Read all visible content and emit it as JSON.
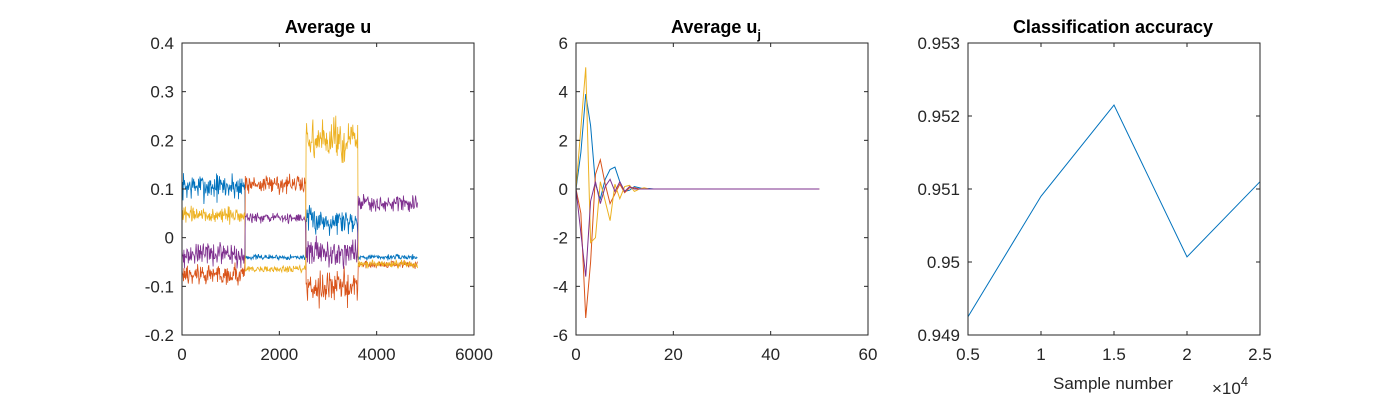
{
  "colors": [
    "#0072BD",
    "#D95319",
    "#EDB120",
    "#7E2F8E"
  ],
  "chart_data": [
    {
      "type": "line",
      "title": "Average u",
      "xlabel": "",
      "ylabel": "",
      "xlim": [
        0,
        6000
      ],
      "ylim": [
        -0.2,
        0.4
      ],
      "xticks": [
        "0",
        "2000",
        "4000",
        "6000"
      ],
      "yticks": [
        "-0.2",
        "-0.1",
        "0",
        "0.1",
        "0.2",
        "0.3",
        "0.4"
      ],
      "grid": false,
      "noise_seed": 7,
      "series": [
        {
          "color_index": 0,
          "x_step": 10,
          "segments": [
            {
              "x_range": [
                0,
                1300
              ],
              "mean": 0.105,
              "amplitude": 0.042
            },
            {
              "x_range": [
                1300,
                2550
              ],
              "mean": -0.04,
              "amplitude": 0.008
            },
            {
              "x_range": [
                2550,
                3620
              ],
              "mean": 0.035,
              "amplitude": 0.04
            },
            {
              "x_range": [
                3620,
                4850
              ],
              "mean": -0.04,
              "amplitude": 0.008
            }
          ]
        },
        {
          "color_index": 1,
          "x_step": 10,
          "segments": [
            {
              "x_range": [
                0,
                1300
              ],
              "mean": -0.075,
              "amplitude": 0.035
            },
            {
              "x_range": [
                1300,
                2550
              ],
              "mean": 0.11,
              "amplitude": 0.028
            },
            {
              "x_range": [
                2550,
                3620
              ],
              "mean": -0.1,
              "amplitude": 0.05
            },
            {
              "x_range": [
                3620,
                4850
              ],
              "mean": -0.055,
              "amplitude": 0.012
            }
          ]
        },
        {
          "color_index": 2,
          "x_step": 10,
          "segments": [
            {
              "x_range": [
                0,
                1300
              ],
              "mean": 0.045,
              "amplitude": 0.025
            },
            {
              "x_range": [
                1300,
                2550
              ],
              "mean": -0.065,
              "amplitude": 0.012
            },
            {
              "x_range": [
                2550,
                3620
              ],
              "mean": 0.2,
              "amplitude": 0.06
            },
            {
              "x_range": [
                3620,
                4850
              ],
              "mean": -0.055,
              "amplitude": 0.012
            }
          ]
        },
        {
          "color_index": 3,
          "x_step": 10,
          "segments": [
            {
              "x_range": [
                0,
                1300
              ],
              "mean": -0.035,
              "amplitude": 0.035
            },
            {
              "x_range": [
                1300,
                2550
              ],
              "mean": 0.04,
              "amplitude": 0.015
            },
            {
              "x_range": [
                2550,
                3620
              ],
              "mean": -0.03,
              "amplitude": 0.04
            },
            {
              "x_range": [
                3620,
                4850
              ],
              "mean": 0.07,
              "amplitude": 0.025
            }
          ]
        }
      ]
    },
    {
      "type": "line",
      "title": "Average u",
      "title_subscript": "j",
      "xlabel": "",
      "ylabel": "",
      "xlim": [
        0,
        60
      ],
      "ylim": [
        -6,
        6
      ],
      "xticks": [
        "0",
        "20",
        "40",
        "60"
      ],
      "yticks": [
        "-6",
        "-4",
        "-2",
        "0",
        "2",
        "4",
        "6"
      ],
      "grid": false,
      "series": [
        {
          "color_index": 0,
          "x": [
            0,
            1,
            2,
            3,
            4,
            5,
            6,
            7,
            8,
            9,
            10,
            11,
            12,
            13,
            14,
            15,
            16,
            18,
            20,
            25,
            30,
            35,
            40,
            45,
            50
          ],
          "y": [
            0,
            1.5,
            3.9,
            2.6,
            0.2,
            -0.4,
            0.4,
            0.8,
            0.9,
            0.3,
            -0.1,
            -0.05,
            0.1,
            0.05,
            0,
            0.02,
            0,
            0,
            0,
            0,
            0,
            0,
            0,
            0,
            0
          ]
        },
        {
          "color_index": 1,
          "x": [
            0,
            1,
            2,
            3,
            4,
            5,
            6,
            7,
            8,
            9,
            10,
            11,
            12,
            13,
            14,
            15,
            16,
            18,
            20,
            25,
            30,
            35,
            40,
            45,
            50
          ],
          "y": [
            0,
            -1.0,
            -5.3,
            -3.0,
            0.6,
            1.2,
            0.2,
            -0.6,
            -0.2,
            0.2,
            -0.15,
            0.05,
            0.05,
            0,
            0,
            0,
            0,
            0,
            0,
            0,
            0,
            0,
            0,
            0,
            0
          ]
        },
        {
          "color_index": 2,
          "x": [
            0,
            1,
            2,
            3,
            4,
            5,
            6,
            7,
            8,
            9,
            10,
            11,
            12,
            13,
            14,
            15,
            16,
            18,
            20,
            25,
            30,
            35,
            40,
            45,
            50
          ],
          "y": [
            0,
            2.5,
            5.0,
            -2.2,
            -2.0,
            0.3,
            -0.5,
            -1.3,
            0.2,
            -0.4,
            0.1,
            0.15,
            -0.1,
            0,
            0.05,
            0,
            0,
            0,
            0,
            0,
            0,
            0,
            0,
            0,
            0
          ]
        },
        {
          "color_index": 3,
          "x": [
            0,
            1,
            2,
            3,
            4,
            5,
            6,
            7,
            8,
            9,
            10,
            11,
            12,
            13,
            14,
            15,
            16,
            18,
            20,
            25,
            30,
            35,
            40,
            45,
            50
          ],
          "y": [
            0,
            -1.8,
            -3.6,
            -0.5,
            0.3,
            -0.6,
            0.1,
            0.4,
            -0.1,
            0.3,
            -0.1,
            0.1,
            0,
            0,
            0,
            0,
            0,
            0,
            0,
            0,
            0,
            0,
            0,
            0,
            0
          ]
        }
      ]
    },
    {
      "type": "line",
      "title": "Classification accuracy",
      "xlabel": "Sample number",
      "ylabel": "",
      "x_multiplier": "×10",
      "x_multiplier_exp": "4",
      "xlim": [
        0.5,
        2.5
      ],
      "ylim": [
        0.949,
        0.953
      ],
      "xticks": [
        "0.5",
        "1",
        "1.5",
        "2",
        "2.5"
      ],
      "yticks": [
        "0.949",
        "0.95",
        "0.951",
        "0.952",
        "0.953"
      ],
      "grid": false,
      "series": [
        {
          "color_index": 0,
          "x": [
            0.5,
            1.0,
            1.5,
            2.0,
            2.5
          ],
          "y": [
            0.94925,
            0.9509,
            0.95215,
            0.95007,
            0.9511
          ]
        }
      ]
    }
  ]
}
